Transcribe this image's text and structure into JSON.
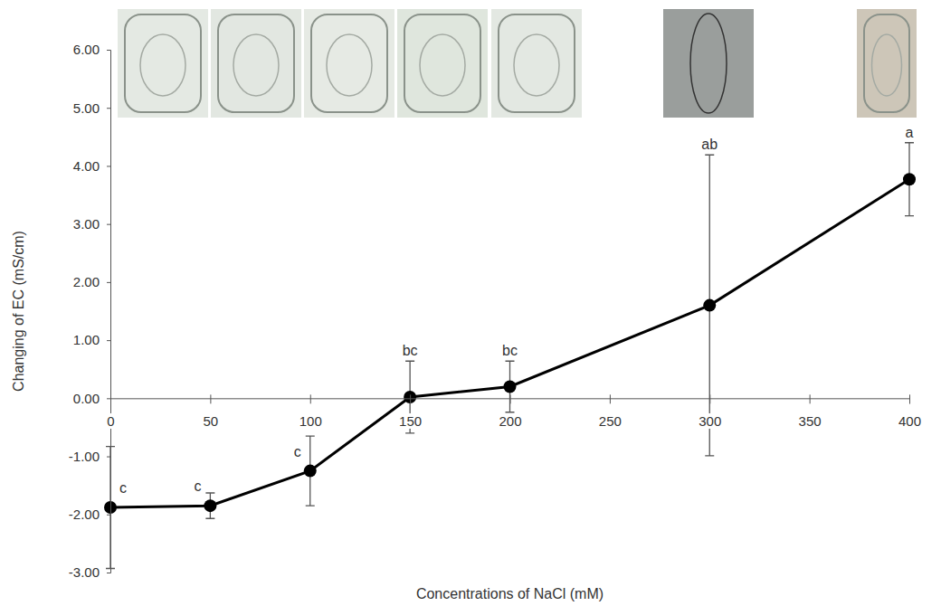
{
  "chart_data": {
    "type": "line",
    "x_label": "Concentrations of NaCl (mM)",
    "y_label": "Changing of EC (mS/cm)",
    "x": [
      0,
      50,
      100,
      150,
      200,
      300,
      400
    ],
    "values": [
      -1.88,
      -1.85,
      -1.25,
      0.02,
      0.2,
      1.6,
      3.77
    ],
    "errors": [
      1.05,
      0.22,
      0.6,
      0.62,
      0.44,
      2.59,
      0.63
    ],
    "letters": [
      "c",
      "c",
      "c",
      "bc",
      "bc",
      "ab",
      "a"
    ],
    "color": "#000000",
    "marker": "circle",
    "grid": false,
    "xlim": [
      0,
      400
    ],
    "xticks": [
      0,
      50,
      100,
      150,
      200,
      250,
      300,
      350,
      400
    ],
    "ylim": [
      -3,
      6
    ],
    "yticks": [
      {
        "value": -3,
        "label": "-3.00"
      },
      {
        "value": -2,
        "label": "-2.00"
      },
      {
        "value": -1,
        "label": "-1.00"
      },
      {
        "value": 0,
        "label": "0.00"
      },
      {
        "value": 1,
        "label": "1.00"
      },
      {
        "value": 2,
        "label": "2.00"
      },
      {
        "value": 3,
        "label": "3.00"
      },
      {
        "value": 4,
        "label": "4.00"
      },
      {
        "value": 5,
        "label": "5.00"
      },
      {
        "value": 6,
        "label": "6.00"
      }
    ]
  }
}
